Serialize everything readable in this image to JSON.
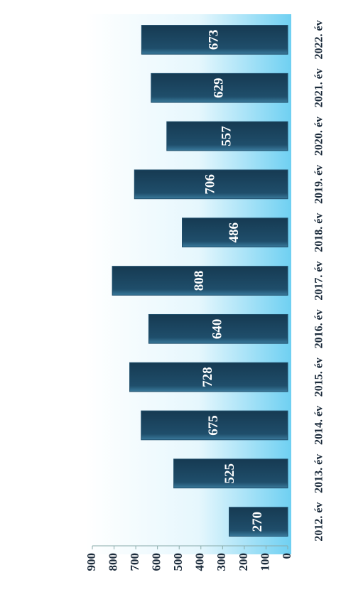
{
  "chart_data": {
    "type": "bar",
    "categories": [
      "2012. év",
      "2013. év",
      "2014. év",
      "2015. év",
      "2016. év",
      "2017. év",
      "2018. év",
      "2019. év",
      "2020. év",
      "2021. év",
      "2022. év"
    ],
    "values": [
      270,
      525,
      675,
      728,
      640,
      808,
      486,
      706,
      557,
      629,
      673
    ],
    "color": "#1f4e6b",
    "ylim": [
      0,
      900
    ],
    "yticks": [
      0,
      100,
      200,
      300,
      400,
      500,
      600,
      700,
      800,
      900
    ],
    "grid": false
  }
}
